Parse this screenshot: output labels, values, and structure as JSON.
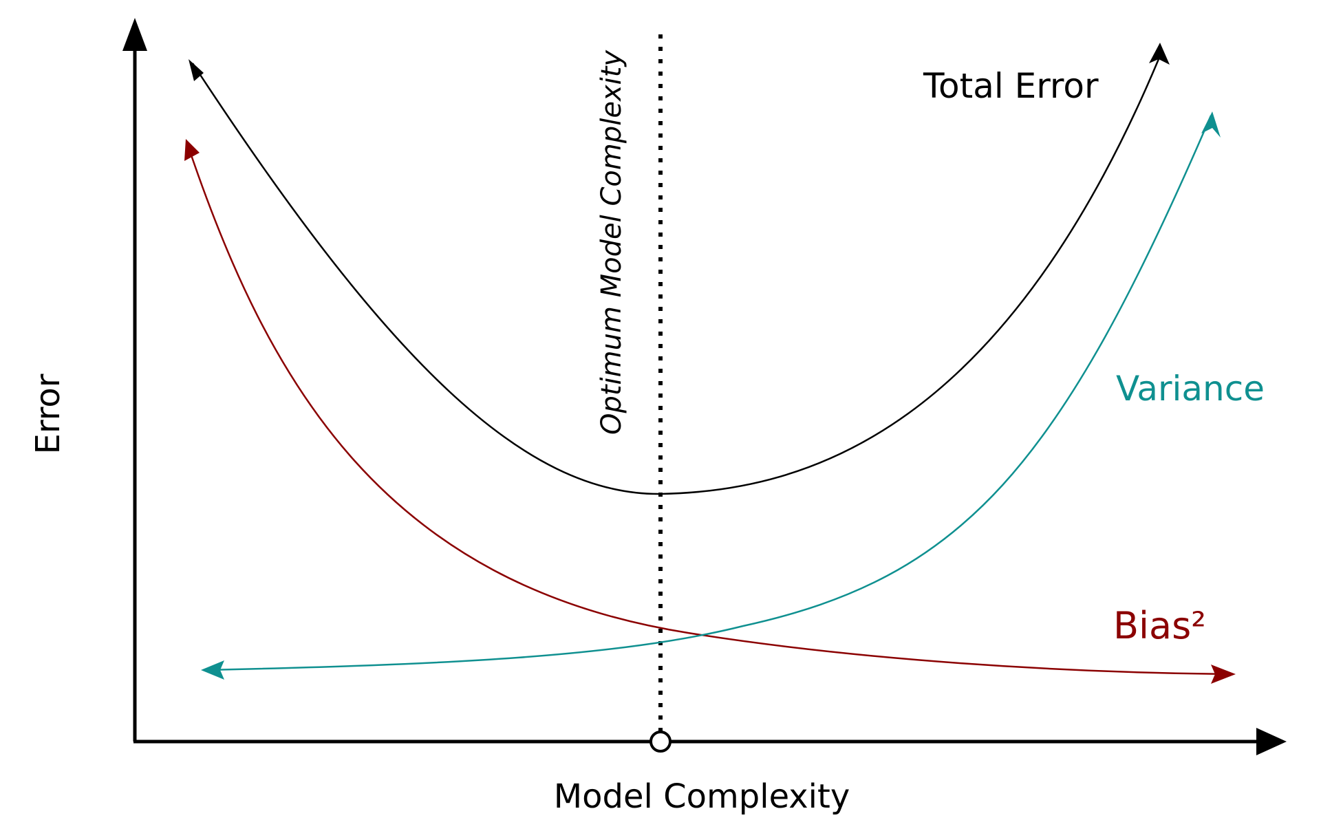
{
  "axes": {
    "x_label": "Model Complexity",
    "y_label": "Error"
  },
  "annotation": {
    "optimum_label": "Optimum Model Complexity"
  },
  "curves": {
    "total_error": {
      "label": "Total Error",
      "color": "#000000"
    },
    "variance": {
      "label": "Variance",
      "color": "#0f9090"
    },
    "bias": {
      "label": "Bias²",
      "color": "#8b0000"
    }
  }
}
